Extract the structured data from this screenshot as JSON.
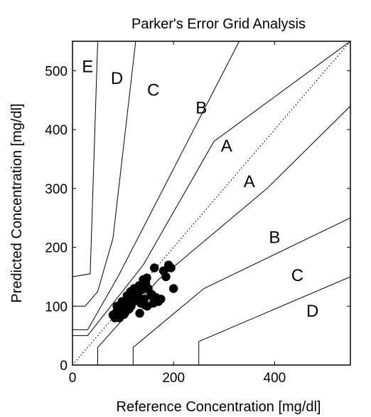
{
  "chart_data": {
    "type": "scatter",
    "title": "Parker's Error Grid Analysis",
    "xlabel": "Reference Concentration [mg/dl]",
    "ylabel": "Predicted Concentration [mg/dl]",
    "xlim": [
      0,
      550
    ],
    "ylim": [
      0,
      550
    ],
    "xticks": [
      0,
      200,
      400
    ],
    "yticks": [
      0,
      100,
      200,
      300,
      400,
      500
    ],
    "grid": false,
    "zone_labels": [
      {
        "text": "E",
        "x": 30,
        "y": 505
      },
      {
        "text": "D",
        "x": 88,
        "y": 485
      },
      {
        "text": "C",
        "x": 160,
        "y": 465
      },
      {
        "text": "B",
        "x": 255,
        "y": 435
      },
      {
        "text": "A",
        "x": 305,
        "y": 370
      },
      {
        "text": "A",
        "x": 350,
        "y": 310
      },
      {
        "text": "B",
        "x": 400,
        "y": 215
      },
      {
        "text": "C",
        "x": 445,
        "y": 150
      },
      {
        "text": "D",
        "x": 475,
        "y": 90
      }
    ],
    "boundaries": [
      {
        "name": "identity",
        "style": "dotted",
        "points": [
          [
            0,
            0
          ],
          [
            550,
            550
          ]
        ]
      },
      {
        "name": "A-B upper",
        "points": [
          [
            0,
            50
          ],
          [
            30,
            50
          ],
          [
            140,
            170
          ],
          [
            280,
            380
          ],
          [
            550,
            550
          ]
        ]
      },
      {
        "name": "A-B lower",
        "points": [
          [
            50,
            0
          ],
          [
            50,
            30
          ],
          [
            170,
            145
          ],
          [
            385,
            300
          ],
          [
            550,
            440
          ]
        ]
      },
      {
        "name": "B-C upper",
        "points": [
          [
            0,
            60
          ],
          [
            30,
            60
          ],
          [
            90,
            150
          ],
          [
            330,
            550
          ]
        ]
      },
      {
        "name": "B-C lower",
        "points": [
          [
            120,
            0
          ],
          [
            120,
            30
          ],
          [
            260,
            130
          ],
          [
            550,
            250
          ]
        ]
      },
      {
        "name": "C-D upper",
        "points": [
          [
            0,
            100
          ],
          [
            25,
            100
          ],
          [
            50,
            125
          ],
          [
            80,
            215
          ],
          [
            125,
            550
          ]
        ]
      },
      {
        "name": "C-D lower",
        "points": [
          [
            250,
            0
          ],
          [
            250,
            40
          ],
          [
            550,
            150
          ]
        ]
      },
      {
        "name": "D-E",
        "points": [
          [
            0,
            150
          ],
          [
            35,
            155
          ],
          [
            50,
            550
          ]
        ]
      }
    ],
    "series": [
      {
        "x": [
          80,
          84,
          87,
          90,
          92,
          95,
          97,
          100,
          102,
          104,
          107,
          110,
          112,
          114,
          116,
          118,
          120,
          122,
          125,
          128,
          130,
          132,
          135,
          138,
          140,
          142,
          145,
          148,
          150,
          155,
          160,
          165,
          170,
          175,
          180,
          185,
          190,
          195,
          200,
          88,
          93,
          98,
          105,
          108,
          115,
          127,
          133,
          143,
          147,
          157,
          162,
          96,
          111
        ],
        "y": [
          85,
          80,
          90,
          88,
          82,
          95,
          92,
          100,
          86,
          105,
          98,
          110,
          95,
          112,
          100,
          120,
          108,
          130,
          115,
          125,
          118,
          135,
          105,
          128,
          145,
          112,
          140,
          100,
          130,
          118,
          105,
          115,
          108,
          112,
          160,
          150,
          170,
          165,
          130,
          100,
          80,
          108,
          90,
          118,
          125,
          112,
          88,
          102,
          148,
          120,
          165,
          84,
          96
        ]
      }
    ]
  }
}
